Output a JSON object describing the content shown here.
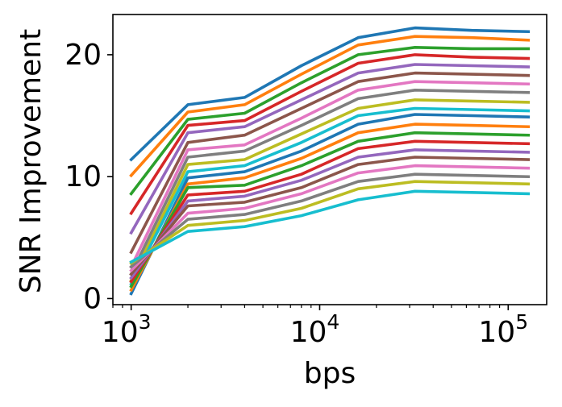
{
  "chart_data": {
    "type": "line",
    "xlabel": "bps",
    "ylabel": "SNR Improvement",
    "xscale": "log",
    "xlim": [
      800,
      160000
    ],
    "ylim": [
      -0.5,
      23.3
    ],
    "xticks": [
      {
        "value": 1000,
        "base": "10",
        "exp": "3"
      },
      {
        "value": 10000,
        "base": "10",
        "exp": "4"
      },
      {
        "value": 100000,
        "base": "10",
        "exp": "5"
      }
    ],
    "yticks": [
      0,
      10,
      20
    ],
    "x": [
      1000,
      2000,
      4000,
      8000,
      16000,
      32000,
      64000,
      128000
    ],
    "series": [
      {
        "color": "#1f77b4",
        "values": [
          11.4,
          15.9,
          16.5,
          19.1,
          21.4,
          22.2,
          22.0,
          21.9
        ]
      },
      {
        "color": "#ff7f0e",
        "values": [
          10.1,
          15.3,
          15.9,
          18.4,
          20.8,
          21.5,
          21.4,
          21.2
        ]
      },
      {
        "color": "#2ca02c",
        "values": [
          8.6,
          14.7,
          15.2,
          17.7,
          20.0,
          20.6,
          20.5,
          20.5
        ]
      },
      {
        "color": "#d62728",
        "values": [
          7.0,
          14.2,
          14.6,
          17.0,
          19.3,
          20.0,
          19.8,
          19.7
        ]
      },
      {
        "color": "#9467bd",
        "values": [
          5.4,
          13.6,
          14.1,
          16.3,
          18.5,
          19.2,
          19.1,
          19.0
        ]
      },
      {
        "color": "#8c564b",
        "values": [
          3.8,
          12.8,
          13.4,
          15.6,
          17.8,
          18.5,
          18.4,
          18.3
        ]
      },
      {
        "color": "#e377c2",
        "values": [
          2.6,
          12.2,
          12.6,
          14.8,
          17.1,
          17.8,
          17.7,
          17.6
        ]
      },
      {
        "color": "#7f7f7f",
        "values": [
          2.0,
          11.6,
          12.1,
          14.2,
          16.4,
          17.1,
          17.0,
          16.9
        ]
      },
      {
        "color": "#bcbd22",
        "values": [
          1.5,
          11.0,
          11.4,
          13.5,
          15.6,
          16.3,
          16.2,
          16.1
        ]
      },
      {
        "color": "#17becf",
        "values": [
          1.2,
          10.4,
          10.9,
          12.8,
          15.0,
          15.6,
          15.5,
          15.4
        ]
      },
      {
        "color": "#1f77b4",
        "values": [
          0.4,
          9.9,
          10.4,
          12.1,
          14.3,
          15.1,
          15.0,
          14.9
        ]
      },
      {
        "color": "#ff7f0e",
        "values": [
          0.7,
          9.4,
          9.9,
          11.5,
          13.6,
          14.3,
          14.2,
          14.1
        ]
      },
      {
        "color": "#2ca02c",
        "values": [
          1.0,
          9.1,
          9.3,
          10.9,
          12.9,
          13.6,
          13.5,
          13.4
        ]
      },
      {
        "color": "#d62728",
        "values": [
          1.4,
          8.5,
          8.8,
          10.2,
          12.3,
          12.9,
          12.8,
          12.7
        ]
      },
      {
        "color": "#9467bd",
        "values": [
          1.7,
          8.0,
          8.4,
          9.7,
          11.6,
          12.2,
          12.1,
          12.0
        ]
      },
      {
        "color": "#8c564b",
        "values": [
          2.0,
          7.6,
          7.9,
          9.1,
          11.0,
          11.6,
          11.5,
          11.4
        ]
      },
      {
        "color": "#e377c2",
        "values": [
          2.3,
          7.0,
          7.4,
          8.6,
          10.3,
          10.9,
          10.8,
          10.7
        ]
      },
      {
        "color": "#7f7f7f",
        "values": [
          2.6,
          6.5,
          6.9,
          8.0,
          9.6,
          10.2,
          10.1,
          10.0
        ]
      },
      {
        "color": "#bcbd22",
        "values": [
          2.9,
          6.0,
          6.4,
          7.4,
          9.0,
          9.6,
          9.5,
          9.4
        ]
      },
      {
        "color": "#17becf",
        "values": [
          3.0,
          5.5,
          5.9,
          6.8,
          8.1,
          8.8,
          8.7,
          8.6
        ]
      }
    ]
  }
}
